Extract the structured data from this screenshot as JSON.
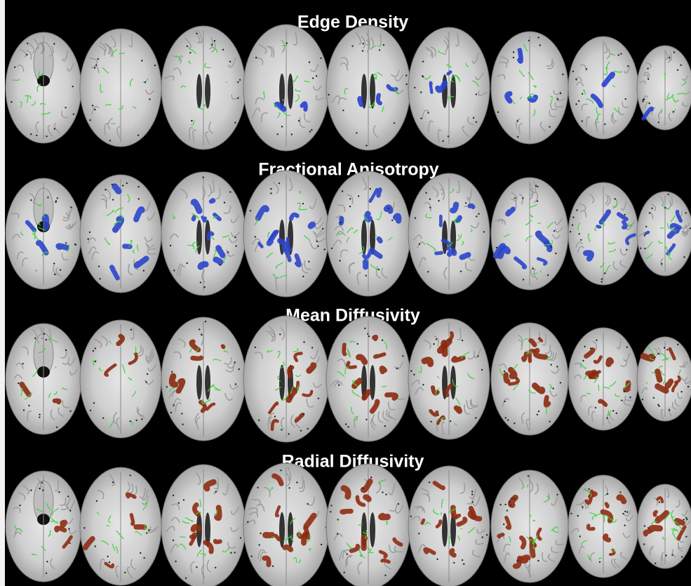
{
  "panels": [
    {
      "title": "Edge Density"
    },
    {
      "title": "Fractional Anisotropy"
    },
    {
      "title": "Mean Diffusivity"
    },
    {
      "title": "Radial Diffusivity"
    }
  ]
}
